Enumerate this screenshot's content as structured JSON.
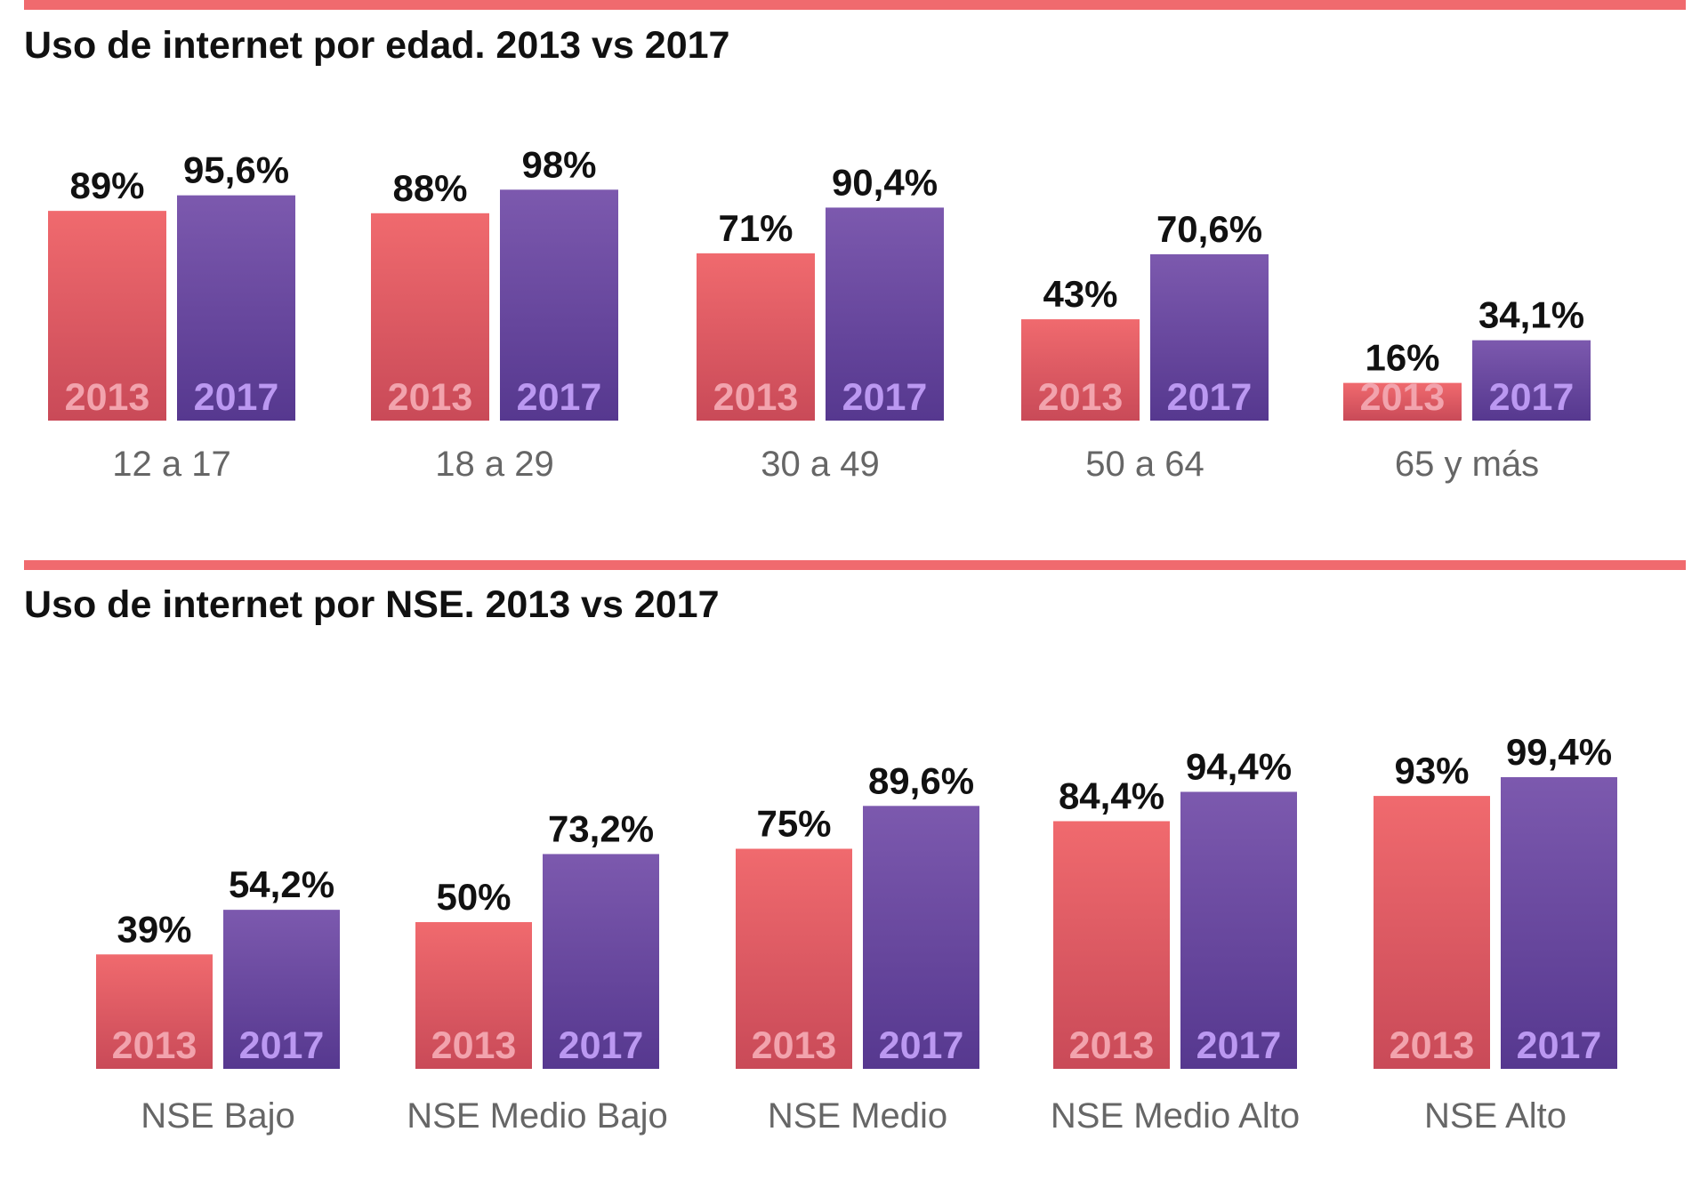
{
  "colors": {
    "accent": "#f06a6e",
    "bar_2013_top": "#f06a6e",
    "bar_2013_bottom": "#c94a58",
    "bar_2017_top": "#7c59ae",
    "bar_2017_bottom": "#56388f",
    "label_2013": "#f2a3ad",
    "label_2017": "#bb98f1"
  },
  "chart_data": [
    {
      "type": "bar",
      "title": "Uso de internet por edad. 2013 vs 2017",
      "categories": [
        "12 a 17",
        "18 a 29",
        "30 a 49",
        "50 a 64",
        "65 y más"
      ],
      "series": [
        {
          "name": "2013",
          "values": [
            89,
            88,
            71,
            43,
            16
          ],
          "labels": [
            "89%",
            "88%",
            "71%",
            "43%",
            "16%"
          ]
        },
        {
          "name": "2017",
          "values": [
            95.6,
            98,
            90.4,
            70.6,
            34.1
          ],
          "labels": [
            "95,6%",
            "98%",
            "90,4%",
            "70,6%",
            "34,1%"
          ]
        }
      ],
      "ylim": [
        0,
        100
      ],
      "grid": false
    },
    {
      "type": "bar",
      "title": "Uso de internet por NSE. 2013 vs 2017",
      "categories": [
        "NSE Bajo",
        "NSE Medio Bajo",
        "NSE Medio",
        "NSE Medio Alto",
        "NSE Alto"
      ],
      "series": [
        {
          "name": "2013",
          "values": [
            39,
            50,
            75,
            84.4,
            93
          ],
          "labels": [
            "39%",
            "50%",
            "75%",
            "84,4%",
            "93%"
          ]
        },
        {
          "name": "2017",
          "values": [
            54.2,
            73.2,
            89.6,
            94.4,
            99.4
          ],
          "labels": [
            "54,2%",
            "73,2%",
            "89,6%",
            "94,4%",
            "99,4%"
          ]
        }
      ],
      "ylim": [
        0,
        100
      ],
      "grid": false
    }
  ]
}
